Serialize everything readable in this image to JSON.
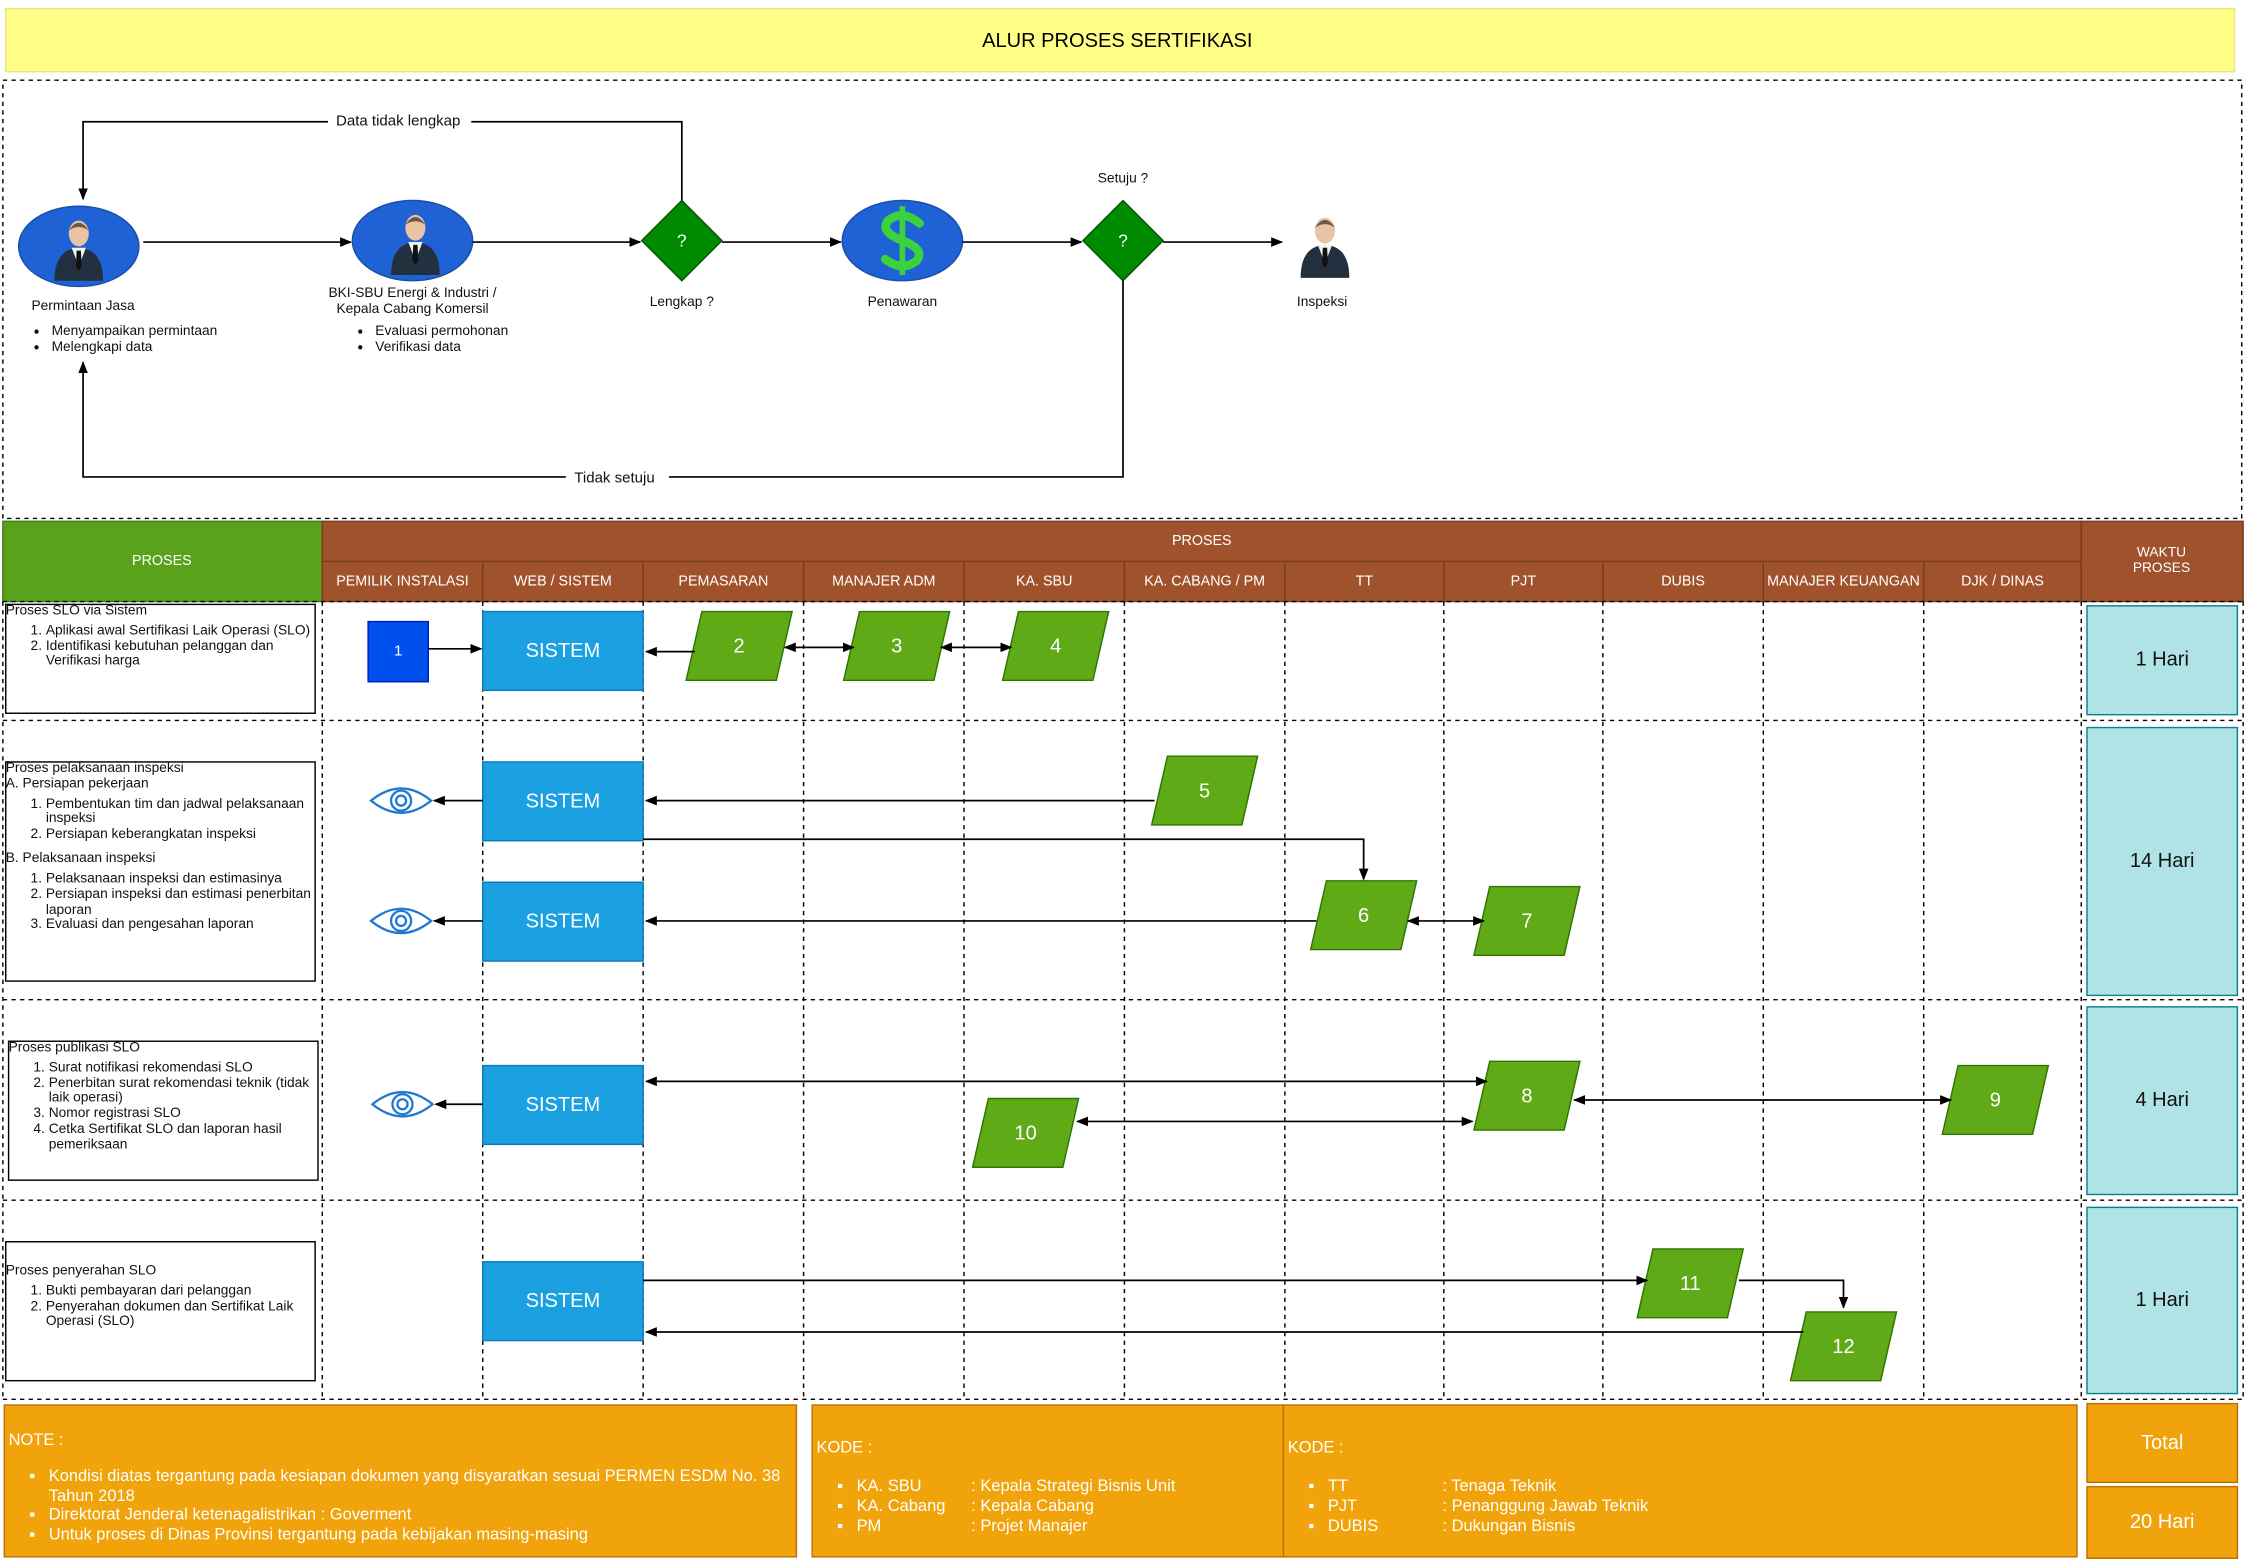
{
  "title": "ALUR PROSES SERTIFIKASI",
  "flow": {
    "nodes": [
      {
        "label": [
          "Permintaan Jasa"
        ],
        "items": [
          "Menyampaikan permintaan",
          "Melengkapi data"
        ]
      },
      {
        "label": [
          "BKI-SBU Energi & Industri /",
          "Kepala Cabang Komersil"
        ],
        "items": [
          "Evaluasi permohonan",
          "Verifikasi data"
        ]
      },
      {
        "label": [
          "Lengkap ?"
        ],
        "symbol": "?"
      },
      {
        "label": [
          "Penawaran"
        ]
      },
      {
        "label": [
          "Setuju ?"
        ],
        "symbol": "?"
      },
      {
        "label": [
          "Inspeksi"
        ]
      }
    ],
    "edge_labels": [
      "Data tidak lengkap",
      "Tidak setuju"
    ]
  },
  "lanes": {
    "left_header": "PROSES",
    "group_header": "PROSES",
    "time_header": [
      "WAKTU",
      "PROSES"
    ],
    "columns": [
      "PEMILIK INSTALASI",
      "WEB / SISTEM",
      "PEMASARAN",
      "MANAJER ADM",
      "KA. SBU",
      "KA. CABANG / PM",
      "TT",
      "PJT",
      "DUBIS",
      "MANAJER KEUANGAN",
      "DJK / DINAS"
    ]
  },
  "rows": [
    {
      "title": "Proses SLO via Sistem",
      "groups": [
        {
          "items": [
            "Aplikasi awal Sertifikasi Laik Operasi (SLO)",
            "Identifikasi kebutuhan pelanggan dan Verifikasi harga"
          ]
        }
      ],
      "time": "1 Hari"
    },
    {
      "title": "Proses pelaksanaan inspeksi",
      "groups": [
        {
          "heading": "A. Persiapan pekerjaan",
          "items": [
            "Pembentukan tim dan jadwal pelaksanaan inspeksi",
            "Persiapan keberangkatan inspeksi"
          ]
        },
        {
          "heading": "B. Pelaksanaan inspeksi",
          "items": [
            "Pelaksanaan inspeksi dan estimasinya",
            "Persiapan inspeksi dan estimasi penerbitan laporan",
            "Evaluasi dan pengesahan laporan"
          ]
        }
      ],
      "time": "14 Hari"
    },
    {
      "title": "Proses publikasi SLO",
      "groups": [
        {
          "items": [
            "Surat notifikasi rekomendasi SLO",
            "Penerbitan surat rekomendasi teknik (tidak laik operasi)",
            "Nomor registrasi SLO",
            "Cetka Sertifikat SLO dan laporan hasil pemeriksaan"
          ]
        }
      ],
      "time": "4 Hari"
    },
    {
      "title": "Proses penyerahan SLO",
      "groups": [
        {
          "items": [
            "Bukti pembayaran dari pelanggan",
            "Penyerahan dokumen dan Sertifikat Laik Operasi (SLO)"
          ]
        }
      ],
      "time": "1 Hari"
    }
  ],
  "system_label": "SISTEM",
  "steps": [
    1,
    2,
    3,
    4,
    5,
    6,
    7,
    8,
    9,
    10,
    11,
    12
  ],
  "note": {
    "heading": "NOTE :",
    "items": [
      "Kondisi diatas tergantung pada kesiapan dokumen yang disyaratkan sesuai PERMEN ESDM No. 38 Tahun 2018",
      "Direktorat Jenderal ketenagalistrikan : Goverment",
      "Untuk proses di Dinas Provinsi tergantung pada kebijakan masing-masing"
    ]
  },
  "kode": [
    {
      "heading": "KODE :",
      "items": [
        {
          "code": "KA. SBU",
          "desc": ": Kepala Strategi Bisnis Unit"
        },
        {
          "code": "KA. Cabang",
          "desc": ": Kepala Cabang"
        },
        {
          "code": "PM",
          "desc": ": Projet Manajer"
        }
      ]
    },
    {
      "heading": "KODE :",
      "items": [
        {
          "code": "TT",
          "desc": ": Tenaga Teknik"
        },
        {
          "code": "PJT",
          "desc": ": Penanggung Jawab Teknik"
        },
        {
          "code": "DUBIS",
          "desc": ": Dukungan Bisnis"
        }
      ]
    }
  ],
  "total": {
    "label": "Total",
    "value": "20 Hari"
  }
}
